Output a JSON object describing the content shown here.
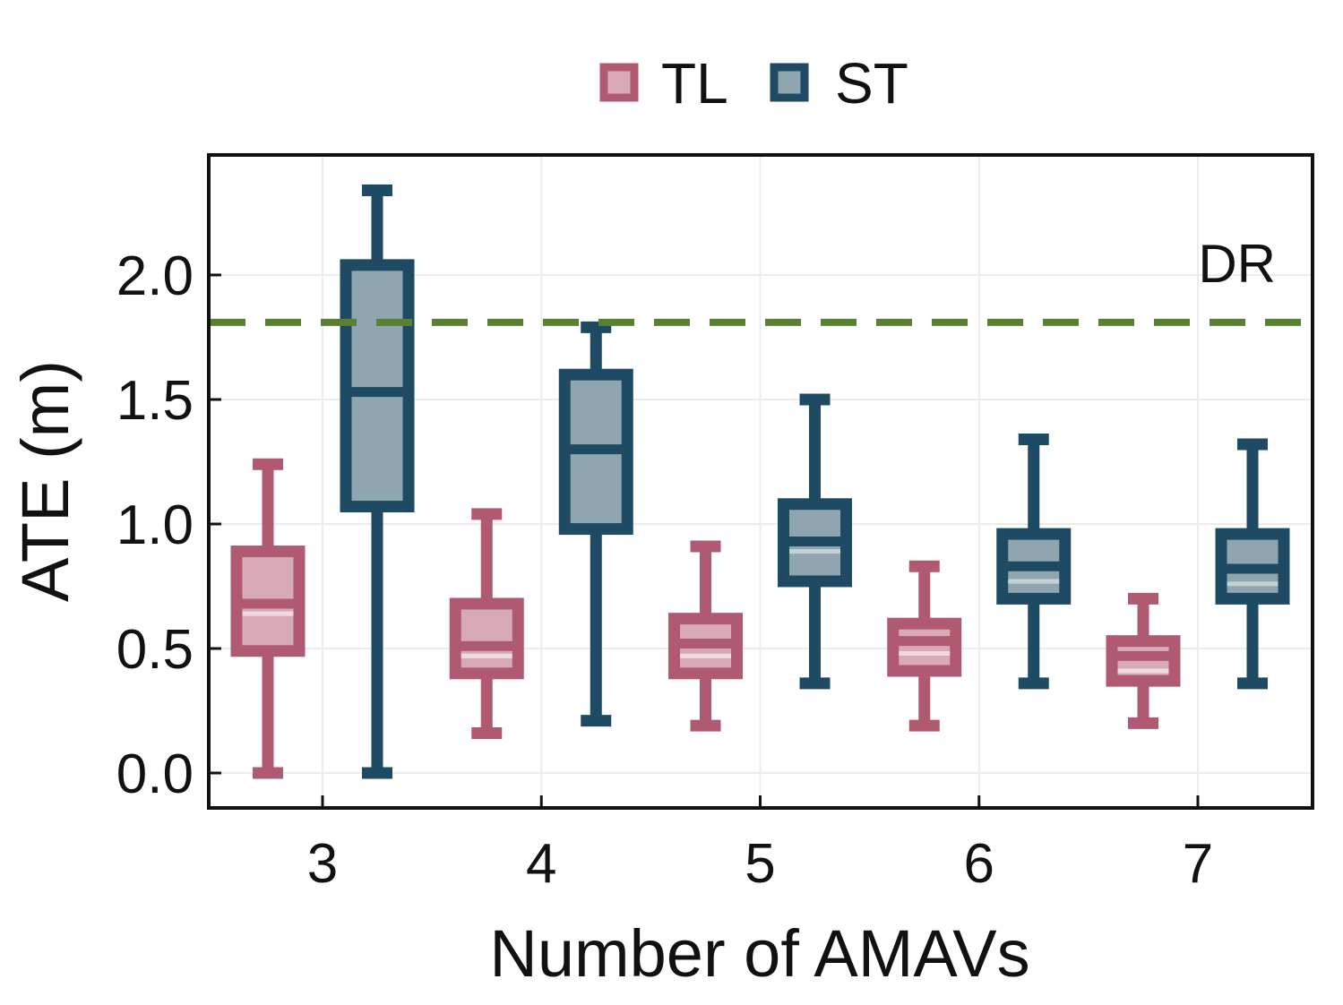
{
  "chart_data": {
    "type": "box",
    "xlabel": "Number of AMAVs",
    "ylabel": "ATE (m)",
    "categories": [
      "3",
      "4",
      "5",
      "6",
      "7"
    ],
    "ylim": [
      -0.14,
      2.5
    ],
    "yticks": [
      "0.0",
      "0.5",
      "1.0",
      "1.5",
      "2.0"
    ],
    "ytick_values": [
      0.0,
      0.5,
      1.0,
      1.5,
      2.0
    ],
    "grid": true,
    "legend_position": "top-center",
    "series": [
      {
        "name": "TL",
        "color": "#b05a72",
        "fill": "#d8aab7",
        "boxes": [
          {
            "whisker_low": 0.0,
            "q1": 0.49,
            "median": 0.68,
            "mean": 0.64,
            "q3": 0.89,
            "whisker_high": 1.24
          },
          {
            "whisker_low": 0.16,
            "q1": 0.4,
            "median": 0.51,
            "mean": 0.47,
            "q3": 0.68,
            "whisker_high": 1.04
          },
          {
            "whisker_low": 0.19,
            "q1": 0.4,
            "median": 0.52,
            "mean": 0.47,
            "q3": 0.62,
            "whisker_high": 0.91
          },
          {
            "whisker_low": 0.19,
            "q1": 0.41,
            "median": 0.53,
            "mean": 0.48,
            "q3": 0.6,
            "whisker_high": 0.83
          },
          {
            "whisker_low": 0.2,
            "q1": 0.37,
            "median": 0.47,
            "mean": 0.41,
            "q3": 0.53,
            "whisker_high": 0.7
          }
        ]
      },
      {
        "name": "ST",
        "color": "#1e4a63",
        "fill": "#8fa6b1",
        "boxes": [
          {
            "whisker_low": 0.0,
            "q1": 1.07,
            "median": 1.53,
            "mean": 1.53,
            "q3": 2.04,
            "whisker_high": 2.34
          },
          {
            "whisker_low": 0.21,
            "q1": 0.98,
            "median": 1.3,
            "mean": 1.3,
            "q3": 1.6,
            "whisker_high": 1.79
          },
          {
            "whisker_low": 0.36,
            "q1": 0.77,
            "median": 0.93,
            "mean": 0.89,
            "q3": 1.08,
            "whisker_high": 1.5
          },
          {
            "whisker_low": 0.36,
            "q1": 0.7,
            "median": 0.83,
            "mean": 0.77,
            "q3": 0.96,
            "whisker_high": 1.34
          },
          {
            "whisker_low": 0.36,
            "q1": 0.7,
            "median": 0.82,
            "mean": 0.76,
            "q3": 0.96,
            "whisker_high": 1.32
          }
        ]
      }
    ],
    "reference_line": {
      "label": "DR",
      "value": 1.81,
      "color": "#5a8034"
    }
  }
}
